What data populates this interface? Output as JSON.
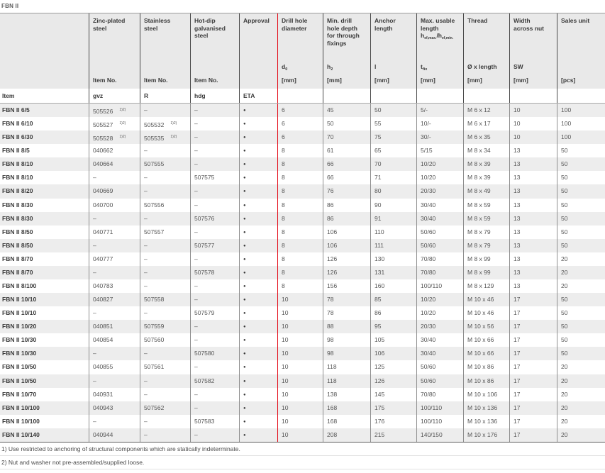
{
  "page_title": "FBN II",
  "accent_red": "#e30613",
  "bullet": "●",
  "dash": "–",
  "sup_note": "1)2)",
  "columns": {
    "item_label": "Item",
    "zinc": {
      "l1": "Zinc-plated",
      "l2": "steel",
      "item_no": "Item No.",
      "code": "gvz"
    },
    "stainless": {
      "l1": "Stainless",
      "l2": "steel",
      "item_no": "Item No.",
      "code": "R"
    },
    "hotdip": {
      "l1": "Hot-dip",
      "l2": "galvanised",
      "l3": "steel",
      "item_no": "Item No.",
      "code": "hdg"
    },
    "approval": {
      "title": "Approval",
      "code": "ETA"
    },
    "drill": {
      "l1": "Drill hole",
      "l2": "diameter",
      "sym": "d",
      "sym_sub": "0",
      "unit": "[mm]"
    },
    "depth": {
      "l1": "Min. drill",
      "l2": "hole depth",
      "l3": "for through",
      "l4": "fixings",
      "sym": "h",
      "sym_sub": "2",
      "unit": "[mm]"
    },
    "anchor": {
      "l1": "Anchor",
      "l2": "length",
      "sym": "l",
      "unit": "[mm]"
    },
    "usable": {
      "l1": "Max. usable",
      "l2": "length",
      "hef_a": "h",
      "hef_a_sub": "ef,max.",
      "hef_b": "/h",
      "hef_b_sub": "ef,min.",
      "sym": "t",
      "sym_sub": "fix",
      "unit": "[mm]"
    },
    "thread": {
      "title": "Thread",
      "sym": "Ø x length",
      "unit": "[mm]"
    },
    "width": {
      "l1": "Width",
      "l2": "across nut",
      "sym": "SW",
      "unit": "[mm]"
    },
    "sales": {
      "title": "Sales unit",
      "unit": "[pcs]"
    }
  },
  "rows": [
    {
      "item": "FBN II 6/5",
      "gvz": "505526",
      "gvz_note": true,
      "r": "–",
      "r_note": false,
      "hdg": "–",
      "eta": true,
      "d0": "6",
      "h2": "45",
      "l": "50",
      "tfix": "5/-",
      "thread": "M 6 x 12",
      "sw": "10",
      "pcs": "100"
    },
    {
      "item": "FBN II 6/10",
      "gvz": "505527",
      "gvz_note": true,
      "r": "505532",
      "r_note": true,
      "hdg": "–",
      "eta": true,
      "d0": "6",
      "h2": "50",
      "l": "55",
      "tfix": "10/-",
      "thread": "M 6 x 17",
      "sw": "10",
      "pcs": "100"
    },
    {
      "item": "FBN II 6/30",
      "gvz": "505528",
      "gvz_note": true,
      "r": "505535",
      "r_note": true,
      "hdg": "–",
      "eta": true,
      "d0": "6",
      "h2": "70",
      "l": "75",
      "tfix": "30/-",
      "thread": "M 6 x 35",
      "sw": "10",
      "pcs": "100"
    },
    {
      "item": "FBN II 8/5",
      "gvz": "040662",
      "gvz_note": false,
      "r": "–",
      "r_note": false,
      "hdg": "–",
      "eta": true,
      "d0": "8",
      "h2": "61",
      "l": "65",
      "tfix": "5/15",
      "thread": "M 8 x 34",
      "sw": "13",
      "pcs": "50"
    },
    {
      "item": "FBN II 8/10",
      "gvz": "040664",
      "gvz_note": false,
      "r": "507555",
      "r_note": false,
      "hdg": "–",
      "eta": true,
      "d0": "8",
      "h2": "66",
      "l": "70",
      "tfix": "10/20",
      "thread": "M 8 x 39",
      "sw": "13",
      "pcs": "50"
    },
    {
      "item": "FBN II 8/10",
      "gvz": "–",
      "gvz_note": false,
      "r": "–",
      "r_note": false,
      "hdg": "507575",
      "eta": true,
      "d0": "8",
      "h2": "66",
      "l": "71",
      "tfix": "10/20",
      "thread": "M 8 x 39",
      "sw": "13",
      "pcs": "50"
    },
    {
      "item": "FBN II 8/20",
      "gvz": "040669",
      "gvz_note": false,
      "r": "–",
      "r_note": false,
      "hdg": "–",
      "eta": true,
      "d0": "8",
      "h2": "76",
      "l": "80",
      "tfix": "20/30",
      "thread": "M 8 x 49",
      "sw": "13",
      "pcs": "50"
    },
    {
      "item": "FBN II 8/30",
      "gvz": "040700",
      "gvz_note": false,
      "r": "507556",
      "r_note": false,
      "hdg": "–",
      "eta": true,
      "d0": "8",
      "h2": "86",
      "l": "90",
      "tfix": "30/40",
      "thread": "M 8 x 59",
      "sw": "13",
      "pcs": "50"
    },
    {
      "item": "FBN II 8/30",
      "gvz": "–",
      "gvz_note": false,
      "r": "–",
      "r_note": false,
      "hdg": "507576",
      "eta": true,
      "d0": "8",
      "h2": "86",
      "l": "91",
      "tfix": "30/40",
      "thread": "M 8 x 59",
      "sw": "13",
      "pcs": "50"
    },
    {
      "item": "FBN II 8/50",
      "gvz": "040771",
      "gvz_note": false,
      "r": "507557",
      "r_note": false,
      "hdg": "–",
      "eta": true,
      "d0": "8",
      "h2": "106",
      "l": "110",
      "tfix": "50/60",
      "thread": "M 8 x 79",
      "sw": "13",
      "pcs": "50"
    },
    {
      "item": "FBN II 8/50",
      "gvz": "–",
      "gvz_note": false,
      "r": "–",
      "r_note": false,
      "hdg": "507577",
      "eta": true,
      "d0": "8",
      "h2": "106",
      "l": "111",
      "tfix": "50/60",
      "thread": "M 8 x 79",
      "sw": "13",
      "pcs": "50"
    },
    {
      "item": "FBN II 8/70",
      "gvz": "040777",
      "gvz_note": false,
      "r": "–",
      "r_note": false,
      "hdg": "–",
      "eta": true,
      "d0": "8",
      "h2": "126",
      "l": "130",
      "tfix": "70/80",
      "thread": "M 8 x 99",
      "sw": "13",
      "pcs": "20"
    },
    {
      "item": "FBN II 8/70",
      "gvz": "–",
      "gvz_note": false,
      "r": "–",
      "r_note": false,
      "hdg": "507578",
      "eta": true,
      "d0": "8",
      "h2": "126",
      "l": "131",
      "tfix": "70/80",
      "thread": "M 8 x 99",
      "sw": "13",
      "pcs": "20"
    },
    {
      "item": "FBN II 8/100",
      "gvz": "040783",
      "gvz_note": false,
      "r": "–",
      "r_note": false,
      "hdg": "–",
      "eta": true,
      "d0": "8",
      "h2": "156",
      "l": "160",
      "tfix": "100/110",
      "thread": "M 8 x 129",
      "sw": "13",
      "pcs": "20"
    },
    {
      "item": "FBN II 10/10",
      "gvz": "040827",
      "gvz_note": false,
      "r": "507558",
      "r_note": false,
      "hdg": "–",
      "eta": true,
      "d0": "10",
      "h2": "78",
      "l": "85",
      "tfix": "10/20",
      "thread": "M 10 x 46",
      "sw": "17",
      "pcs": "50"
    },
    {
      "item": "FBN II 10/10",
      "gvz": "–",
      "gvz_note": false,
      "r": "–",
      "r_note": false,
      "hdg": "507579",
      "eta": true,
      "d0": "10",
      "h2": "78",
      "l": "86",
      "tfix": "10/20",
      "thread": "M 10 x 46",
      "sw": "17",
      "pcs": "50"
    },
    {
      "item": "FBN II 10/20",
      "gvz": "040851",
      "gvz_note": false,
      "r": "507559",
      "r_note": false,
      "hdg": "–",
      "eta": true,
      "d0": "10",
      "h2": "88",
      "l": "95",
      "tfix": "20/30",
      "thread": "M 10 x 56",
      "sw": "17",
      "pcs": "50"
    },
    {
      "item": "FBN II 10/30",
      "gvz": "040854",
      "gvz_note": false,
      "r": "507560",
      "r_note": false,
      "hdg": "–",
      "eta": true,
      "d0": "10",
      "h2": "98",
      "l": "105",
      "tfix": "30/40",
      "thread": "M 10 x 66",
      "sw": "17",
      "pcs": "50"
    },
    {
      "item": "FBN II 10/30",
      "gvz": "–",
      "gvz_note": false,
      "r": "–",
      "r_note": false,
      "hdg": "507580",
      "eta": true,
      "d0": "10",
      "h2": "98",
      "l": "106",
      "tfix": "30/40",
      "thread": "M 10 x 66",
      "sw": "17",
      "pcs": "50"
    },
    {
      "item": "FBN II 10/50",
      "gvz": "040855",
      "gvz_note": false,
      "r": "507561",
      "r_note": false,
      "hdg": "–",
      "eta": true,
      "d0": "10",
      "h2": "118",
      "l": "125",
      "tfix": "50/60",
      "thread": "M 10 x 86",
      "sw": "17",
      "pcs": "20"
    },
    {
      "item": "FBN II 10/50",
      "gvz": "–",
      "gvz_note": false,
      "r": "–",
      "r_note": false,
      "hdg": "507582",
      "eta": true,
      "d0": "10",
      "h2": "118",
      "l": "126",
      "tfix": "50/60",
      "thread": "M 10 x 86",
      "sw": "17",
      "pcs": "20"
    },
    {
      "item": "FBN II 10/70",
      "gvz": "040931",
      "gvz_note": false,
      "r": "–",
      "r_note": false,
      "hdg": "–",
      "eta": true,
      "d0": "10",
      "h2": "138",
      "l": "145",
      "tfix": "70/80",
      "thread": "M 10 x 106",
      "sw": "17",
      "pcs": "20"
    },
    {
      "item": "FBN II 10/100",
      "gvz": "040943",
      "gvz_note": false,
      "r": "507562",
      "r_note": false,
      "hdg": "–",
      "eta": true,
      "d0": "10",
      "h2": "168",
      "l": "175",
      "tfix": "100/110",
      "thread": "M 10 x 136",
      "sw": "17",
      "pcs": "20"
    },
    {
      "item": "FBN II 10/100",
      "gvz": "–",
      "gvz_note": false,
      "r": "–",
      "r_note": false,
      "hdg": "507583",
      "eta": true,
      "d0": "10",
      "h2": "168",
      "l": "176",
      "tfix": "100/110",
      "thread": "M 10 x 136",
      "sw": "17",
      "pcs": "20"
    },
    {
      "item": "FBN II 10/140",
      "gvz": "040944",
      "gvz_note": false,
      "r": "–",
      "r_note": false,
      "hdg": "–",
      "eta": true,
      "d0": "10",
      "h2": "208",
      "l": "215",
      "tfix": "140/150",
      "thread": "M 10 x 176",
      "sw": "17",
      "pcs": "20"
    }
  ],
  "footnotes": [
    "1) Use restricted to anchoring of structural components which are statically indeterminate.",
    "2) Nut and washer not pre-assembled/supplied loose."
  ]
}
